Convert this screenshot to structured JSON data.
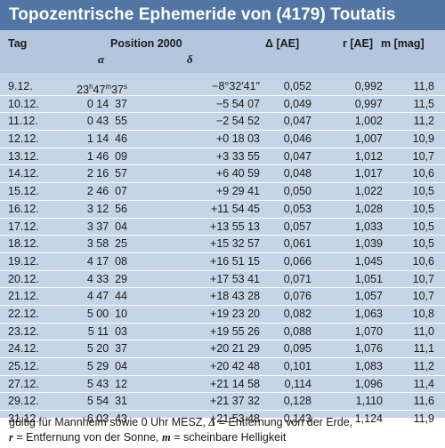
{
  "title": "Topozentrische Ephemeride von (4179) Toutatis",
  "header": {
    "tag": "Tag",
    "position": "Position 2000",
    "alpha": "α",
    "delta_dec": "δ",
    "delta_label": "Δ [AE]",
    "r_label": "r [AE]",
    "m_label": "m [mag]"
  },
  "rows": [
    {
      "tag": "9.12.",
      "ra": "23h47m37s",
      "dec": "−8°32′41″",
      "delta": "0,052",
      "r": "0,992",
      "m": "11,8"
    },
    {
      "tag": "10.12.",
      "ra": "0 14  37",
      "dec": "−5 54 07",
      "delta": "0,049",
      "r": "0,997",
      "m": "11,5"
    },
    {
      "tag": "11.12.",
      "ra": "0 43  55",
      "dec": "−2 54 52",
      "delta": "0,047",
      "r": "1,002",
      "m": "11,2"
    },
    {
      "tag": "12.12.",
      "ra": "1 14  46",
      "dec": "+0 18 03",
      "delta": "0,046",
      "r": "1,007",
      "m": "10,9"
    },
    {
      "tag": "13.12.",
      "ra": "1 46  09",
      "dec": "+3 33 55",
      "delta": "0,047",
      "r": "1,012",
      "m": "10,7"
    },
    {
      "tag": "14.12.",
      "ra": "2 16  57",
      "dec": "+6 40 59",
      "delta": "0,048",
      "r": "1,017",
      "m": "10,6"
    },
    {
      "tag": "15.12.",
      "ra": "2 46  07",
      "dec": "+9 29 41",
      "delta": "0,050",
      "r": "1,022",
      "m": "10,5"
    },
    {
      "tag": "16.12.",
      "ra": "3 12  56",
      "dec": "+11 54 45",
      "delta": "0,053",
      "r": "1,028",
      "m": "10,5"
    },
    {
      "tag": "17.12.",
      "ra": "3 37  04",
      "dec": "+13 55 13",
      "delta": "0,057",
      "r": "1,033",
      "m": "10,5"
    },
    {
      "tag": "18.12.",
      "ra": "3 58  25",
      "dec": "+15 32 57",
      "delta": "0,061",
      "r": "1,039",
      "m": "10,5"
    },
    {
      "tag": "19.12.",
      "ra": "4 17  08",
      "dec": "+16 51 15",
      "delta": "0,066",
      "r": "1,045",
      "m": "10,6"
    },
    {
      "tag": "20.12.",
      "ra": "4 33  29",
      "dec": "+17 53 41",
      "delta": "0,071",
      "r": "1,051",
      "m": "10,7"
    },
    {
      "tag": "21.12.",
      "ra": "4 47  44",
      "dec": "+18 43 28",
      "delta": "0,076",
      "r": "1,057",
      "m": "10,7"
    },
    {
      "tag": "22.12.",
      "ra": "5 00  10",
      "dec": "+19 23 20",
      "delta": "0,082",
      "r": "1,063",
      "m": "10,8"
    },
    {
      "tag": "23.12.",
      "ra": "5 11  03",
      "dec": "+19 55 26",
      "delta": "0,088",
      "r": "1,070",
      "m": "11,0"
    },
    {
      "tag": "24.12.",
      "ra": "5 20  37",
      "dec": "+20 21 29",
      "delta": "0,095",
      "r": "1,076",
      "m": "11,1"
    },
    {
      "tag": "25.12.",
      "ra": "5 29  04",
      "dec": "+20 42 48",
      "delta": "0,101",
      "r": "1,083",
      "m": "11,2"
    },
    {
      "tag": "27.12.",
      "ra": "5 43  12",
      "dec": "+21 14 58",
      "delta": "0,114",
      "r": "1,096",
      "m": "11,4"
    },
    {
      "tag": "29.12.",
      "ra": "5 54  31",
      "dec": "+21 37 32",
      "delta": "0,128",
      "r": "1,110",
      "m": "11,6"
    },
    {
      "tag": "31.12.",
      "ra": "6 03  43",
      "dec": "+21 53 48",
      "delta": "0,143",
      "r": "1,124",
      "m": "11,9"
    }
  ],
  "footer": {
    "line1_a": "gültig für Mannheim sowie 0 Uhr MESZ, ",
    "line1_sym": "Δ",
    "line1_b": " = Entfernung von der Erde,",
    "line2_sym1": "r",
    "line2_a": " = Entfernung von der Sonne, ",
    "line2_sym2": "m",
    "line2_b": " = scheinbare Helligkeit"
  },
  "colors": {
    "title_bg": "#5176a6",
    "header_bg": "#b3c6dd",
    "body_bg": "#c5d4e6"
  }
}
